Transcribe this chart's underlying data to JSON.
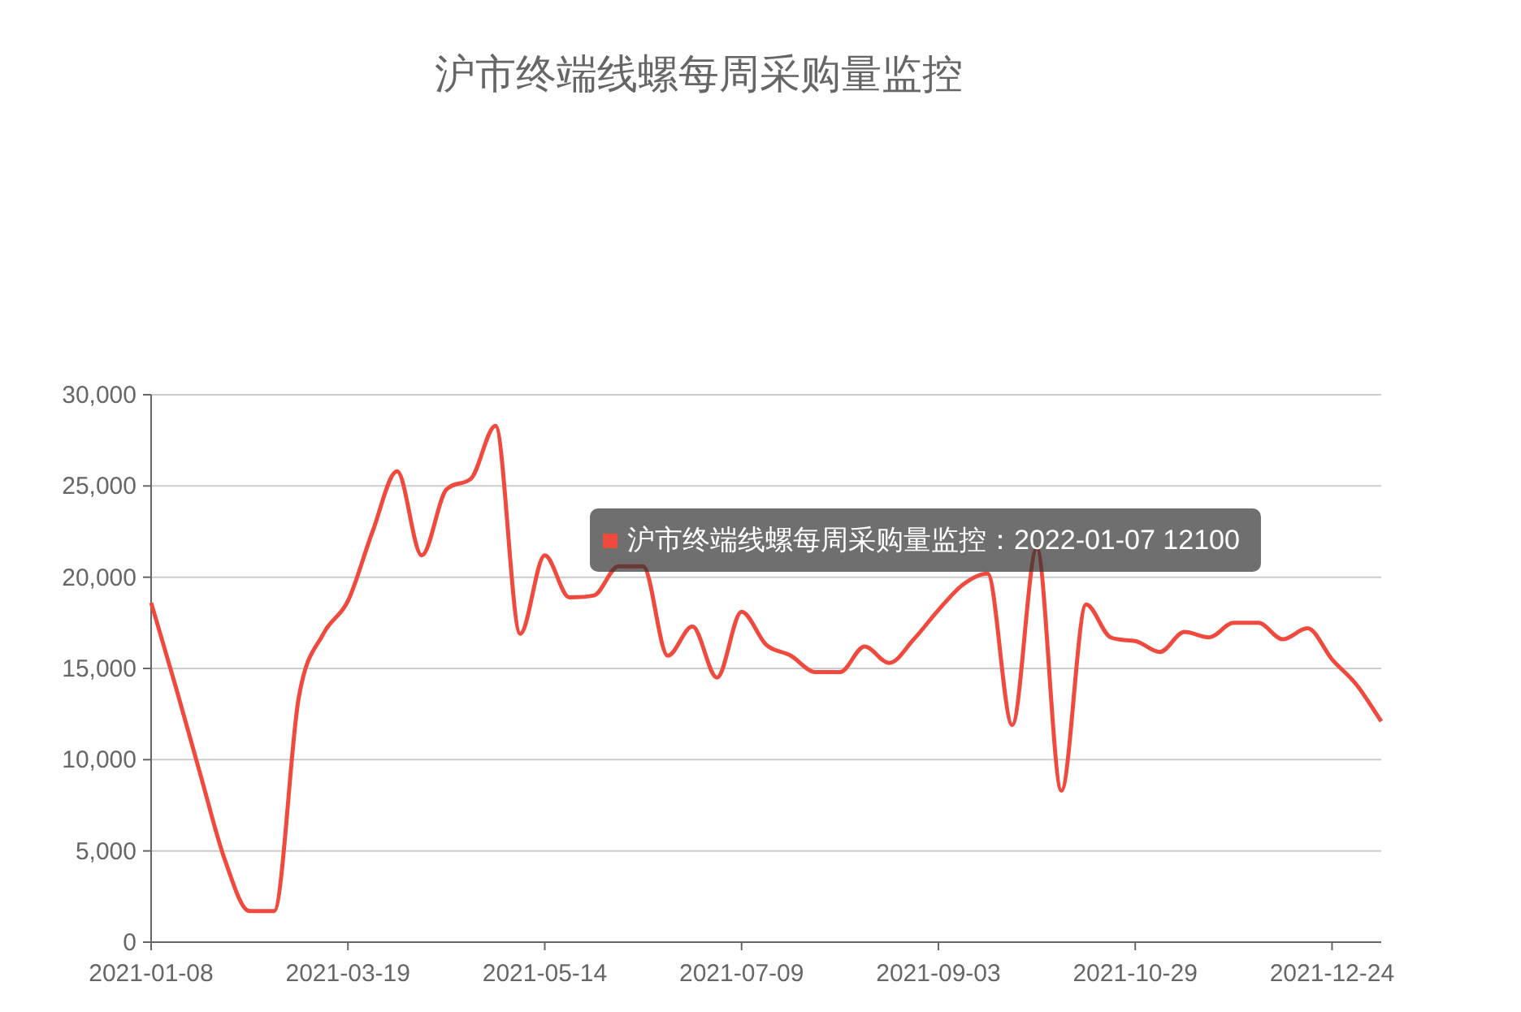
{
  "chart_data": {
    "type": "line",
    "title": "沪市终端线螺每周采购量监控",
    "categories": [
      "2021-01-08",
      null,
      null,
      null,
      null,
      null,
      null,
      null,
      "2021-03-19",
      null,
      null,
      null,
      null,
      null,
      null,
      null,
      "2021-05-14",
      null,
      null,
      null,
      null,
      null,
      null,
      null,
      "2021-07-09",
      null,
      null,
      null,
      null,
      null,
      null,
      null,
      "2021-09-03",
      null,
      null,
      null,
      null,
      null,
      null,
      null,
      "2021-10-29",
      null,
      null,
      null,
      null,
      null,
      null,
      null,
      "2021-12-24",
      null,
      null
    ],
    "series": [
      {
        "color": "#f04a3f",
        "values": [
          18600,
          14000,
          9200,
          4500,
          1700,
          1700,
          13400,
          16900,
          18700,
          22500,
          25800,
          21200,
          24800,
          25400,
          28300,
          16900,
          21200,
          18900,
          19000,
          20600,
          20600,
          15700,
          17300,
          14500,
          18100,
          16300,
          15700,
          14800,
          14800,
          16200,
          15300,
          16600,
          18200,
          19600,
          20200,
          11900,
          21600,
          8300,
          18500,
          16700,
          16500,
          15900,
          17000,
          16700,
          17500,
          17500,
          16600,
          17200,
          15500,
          14100,
          12100
        ]
      }
    ],
    "ylim": [
      0,
      30000
    ],
    "yticks": [
      {
        "value": 0,
        "label": "0"
      },
      {
        "value": 5000,
        "label": "5,000"
      },
      {
        "value": 10000,
        "label": "10,000"
      },
      {
        "value": 15000,
        "label": "15,000"
      },
      {
        "value": 20000,
        "label": "20,000"
      },
      {
        "value": 25000,
        "label": "25,000"
      },
      {
        "value": 30000,
        "label": "30,000"
      }
    ],
    "grid": "y",
    "line_style": "solid",
    "annotations": [
      "沪市终端线螺每周采购量监控：2022-01-07 12100"
    ]
  }
}
